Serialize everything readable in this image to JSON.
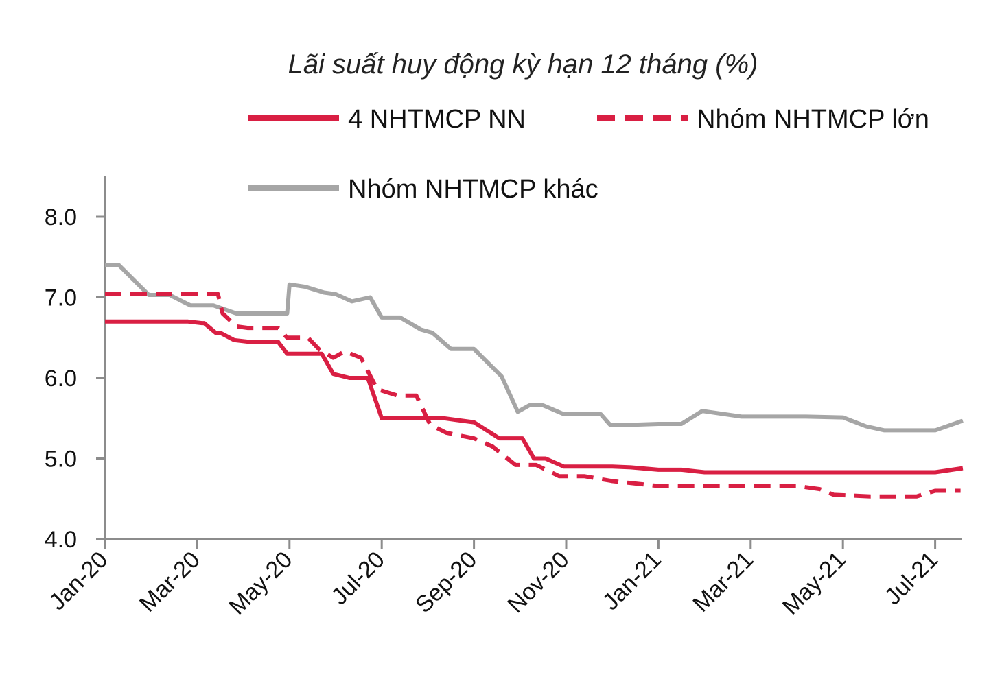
{
  "chart_data": {
    "type": "line",
    "title": "Lãi suất huy động kỳ hạn 12 tháng (%)",
    "xlabel": "",
    "ylabel": "",
    "ylim": [
      4.0,
      8.5
    ],
    "yticks": [
      4.0,
      5.0,
      6.0,
      7.0,
      8.0
    ],
    "ytick_labels": [
      "4.0",
      "5.0",
      "6.0",
      "7.0",
      "8.0"
    ],
    "x_range": [
      0,
      18.6
    ],
    "xticks": [
      0,
      2,
      4,
      6,
      8,
      10,
      12,
      14,
      16,
      18
    ],
    "xtick_labels": [
      "Jan-20",
      "Mar-20",
      "May-20",
      "Jul-20",
      "Sep-20",
      "Nov-20",
      "Jan-21",
      "Mar-21",
      "May-21",
      "Jul-21"
    ],
    "legend_position": "top",
    "grid": false,
    "series": [
      {
        "name": "4 NHTMCP NN",
        "color": "#d91f43",
        "dash": "solid",
        "points": [
          [
            0,
            6.7
          ],
          [
            1.45,
            6.7
          ],
          [
            1.8,
            6.7
          ],
          [
            2.1,
            6.68
          ],
          [
            2.15,
            6.68
          ],
          [
            2.4,
            6.56
          ],
          [
            2.5,
            6.56
          ],
          [
            2.8,
            6.47
          ],
          [
            3.1,
            6.45
          ],
          [
            3.75,
            6.45
          ],
          [
            3.95,
            6.3
          ],
          [
            4.7,
            6.3
          ],
          [
            4.95,
            6.05
          ],
          [
            5.3,
            6.0
          ],
          [
            5.7,
            6.0
          ],
          [
            6.0,
            5.5
          ],
          [
            7.35,
            5.5
          ],
          [
            7.6,
            5.48
          ],
          [
            8.0,
            5.45
          ],
          [
            8.55,
            5.25
          ],
          [
            9.05,
            5.25
          ],
          [
            9.3,
            5.0
          ],
          [
            9.55,
            5.0
          ],
          [
            9.95,
            4.9
          ],
          [
            10.4,
            4.9
          ],
          [
            11.0,
            4.9
          ],
          [
            11.4,
            4.89
          ],
          [
            12.0,
            4.86
          ],
          [
            12.5,
            4.86
          ],
          [
            13.0,
            4.83
          ],
          [
            14.0,
            4.83
          ],
          [
            15.5,
            4.83
          ],
          [
            17.0,
            4.83
          ],
          [
            17.5,
            4.83
          ],
          [
            18.0,
            4.83
          ],
          [
            18.6,
            4.88
          ]
        ]
      },
      {
        "name": "Nhóm NHTMCP lớn",
        "color": "#d91f43",
        "dash": "dashed",
        "points": [
          [
            0,
            7.04
          ],
          [
            2.45,
            7.04
          ],
          [
            2.55,
            6.8
          ],
          [
            2.85,
            6.64
          ],
          [
            3.1,
            6.62
          ],
          [
            3.75,
            6.62
          ],
          [
            3.95,
            6.5
          ],
          [
            4.4,
            6.5
          ],
          [
            4.65,
            6.35
          ],
          [
            4.95,
            6.25
          ],
          [
            5.2,
            6.33
          ],
          [
            5.55,
            6.25
          ],
          [
            5.9,
            5.86
          ],
          [
            6.35,
            5.78
          ],
          [
            6.75,
            5.78
          ],
          [
            7.05,
            5.42
          ],
          [
            7.4,
            5.32
          ],
          [
            8.0,
            5.25
          ],
          [
            8.4,
            5.15
          ],
          [
            8.9,
            4.92
          ],
          [
            9.35,
            4.92
          ],
          [
            9.85,
            4.78
          ],
          [
            10.4,
            4.78
          ],
          [
            11.0,
            4.72
          ],
          [
            12.0,
            4.66
          ],
          [
            12.5,
            4.66
          ],
          [
            14.0,
            4.66
          ],
          [
            15.0,
            4.66
          ],
          [
            15.5,
            4.62
          ],
          [
            15.8,
            4.55
          ],
          [
            16.6,
            4.53
          ],
          [
            17.3,
            4.53
          ],
          [
            17.6,
            4.53
          ],
          [
            18.0,
            4.6
          ],
          [
            18.55,
            4.6
          ]
        ]
      },
      {
        "name": "Nhóm NHTMCP khác",
        "color": "#a6a6a6",
        "dash": "solid",
        "points": [
          [
            0,
            7.4
          ],
          [
            0.3,
            7.4
          ],
          [
            0.95,
            7.03
          ],
          [
            1.4,
            7.03
          ],
          [
            1.85,
            6.9
          ],
          [
            2.35,
            6.9
          ],
          [
            2.85,
            6.8
          ],
          [
            3.25,
            6.8
          ],
          [
            3.95,
            6.8
          ],
          [
            4.0,
            7.16
          ],
          [
            4.35,
            7.13
          ],
          [
            4.75,
            7.06
          ],
          [
            5.0,
            7.04
          ],
          [
            5.35,
            6.95
          ],
          [
            5.75,
            7.0
          ],
          [
            6.0,
            6.75
          ],
          [
            6.4,
            6.75
          ],
          [
            6.85,
            6.6
          ],
          [
            7.1,
            6.56
          ],
          [
            7.5,
            6.36
          ],
          [
            8.0,
            6.36
          ],
          [
            8.6,
            6.02
          ],
          [
            8.95,
            5.58
          ],
          [
            9.2,
            5.66
          ],
          [
            9.5,
            5.66
          ],
          [
            9.95,
            5.55
          ],
          [
            10.75,
            5.55
          ],
          [
            10.95,
            5.42
          ],
          [
            11.5,
            5.42
          ],
          [
            12.0,
            5.43
          ],
          [
            12.5,
            5.43
          ],
          [
            12.95,
            5.59
          ],
          [
            13.8,
            5.52
          ],
          [
            14.5,
            5.52
          ],
          [
            15.2,
            5.52
          ],
          [
            16.0,
            5.51
          ],
          [
            16.5,
            5.4
          ],
          [
            16.9,
            5.35
          ],
          [
            17.3,
            5.35
          ],
          [
            18.0,
            5.35
          ],
          [
            18.6,
            5.47
          ]
        ]
      }
    ]
  }
}
